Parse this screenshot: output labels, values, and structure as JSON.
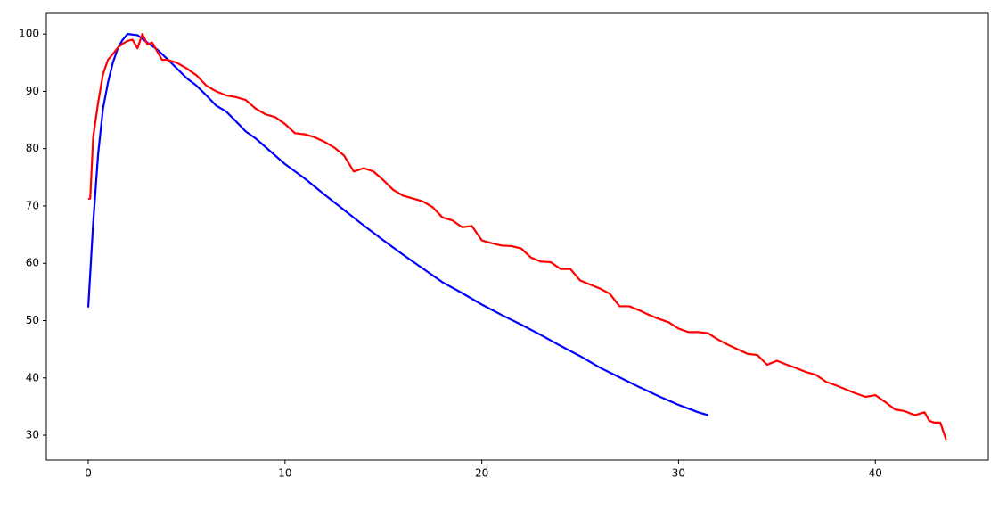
{
  "chart_data": {
    "type": "line",
    "series": [
      {
        "color": "#0000ff",
        "x": [
          0,
          0.25,
          0.5,
          0.75,
          1,
          1.25,
          1.5,
          1.75,
          2,
          2.5,
          3,
          3.5,
          4,
          4.5,
          5,
          5.5,
          6,
          6.5,
          7,
          7.5,
          8,
          8.5,
          9,
          10,
          11,
          12,
          13,
          14,
          15,
          16,
          17,
          18,
          19,
          20,
          21,
          22,
          23,
          24,
          25,
          26,
          27,
          28,
          29,
          30,
          31,
          31.5
        ],
        "values": [
          52.3,
          67,
          79,
          87,
          91.5,
          95,
          97.5,
          99,
          100,
          99.8,
          98.5,
          97.3,
          95.7,
          94,
          92.3,
          91,
          89.3,
          87.5,
          86.5,
          84.8,
          83,
          81.8,
          80.3,
          77.3,
          74.8,
          72,
          69.3,
          66.6,
          64,
          61.5,
          59.1,
          56.7,
          54.8,
          52.8,
          51,
          49.3,
          47.5,
          45.6,
          43.8,
          41.8,
          40.1,
          38.4,
          36.8,
          35.3,
          34,
          33.5
        ]
      },
      {
        "color": "#ff0000",
        "x": [
          0,
          0.1,
          0.25,
          0.5,
          0.75,
          1,
          1.25,
          1.5,
          1.75,
          2,
          2.25,
          2.5,
          2.75,
          3,
          3.25,
          3.5,
          3.75,
          4,
          4.5,
          5,
          5.5,
          6,
          6.5,
          7,
          7.5,
          8,
          8.5,
          9,
          9.5,
          10,
          10.5,
          11,
          11.5,
          12,
          12.5,
          13,
          13.5,
          14,
          14.5,
          15,
          15.5,
          16,
          16.5,
          17,
          17.5,
          18,
          18.5,
          19,
          19.5,
          20,
          20.5,
          21,
          21.5,
          22,
          22.5,
          23,
          23.5,
          24,
          24.5,
          25,
          25.5,
          26,
          26.5,
          27,
          27.5,
          28,
          28.5,
          29,
          29.5,
          30,
          30.5,
          31,
          31.5,
          32,
          32.5,
          33,
          33.5,
          34,
          34.5,
          35,
          35.5,
          36,
          36.5,
          37,
          37.5,
          38,
          38.5,
          39,
          39.5,
          40,
          40.5,
          41,
          41.5,
          42,
          42.5,
          42.75,
          43,
          43.3,
          43.6
        ],
        "values": [
          71.2,
          71.3,
          82,
          88,
          93,
          95.5,
          96.5,
          97.6,
          98.3,
          98.8,
          99,
          97.5,
          100,
          98.2,
          98.5,
          97,
          95.5,
          95.5,
          95,
          94,
          92.8,
          91,
          90,
          89.3,
          89,
          88.5,
          87,
          86,
          85.5,
          84.3,
          82.7,
          82.5,
          82,
          81.2,
          80.2,
          78.8,
          76,
          76.6,
          76,
          74.5,
          72.8,
          71.8,
          71.3,
          70.8,
          69.8,
          68,
          67.5,
          66.3,
          66.5,
          64,
          63.5,
          63.1,
          63,
          62.6,
          61,
          60.3,
          60.2,
          59,
          59,
          57,
          56.3,
          55.6,
          54.7,
          52.5,
          52.5,
          51.8,
          51,
          50.3,
          49.7,
          48.6,
          48,
          48,
          47.8,
          46.7,
          45.8,
          45,
          44.2,
          44,
          42.3,
          43,
          42.3,
          41.7,
          41,
          40.5,
          39.3,
          38.7,
          38,
          37.3,
          36.7,
          37,
          35.8,
          34.5,
          34.2,
          33.5,
          34,
          32.5,
          32.2,
          32.2,
          29.2
        ]
      }
    ],
    "xlim": [
      -2.13,
      45.74
    ],
    "xticks": [
      0,
      10,
      20,
      30,
      40
    ],
    "ylim": [
      25.65,
      103.6
    ],
    "yticks": [
      30,
      40,
      50,
      60,
      70,
      80,
      90,
      100
    ]
  }
}
